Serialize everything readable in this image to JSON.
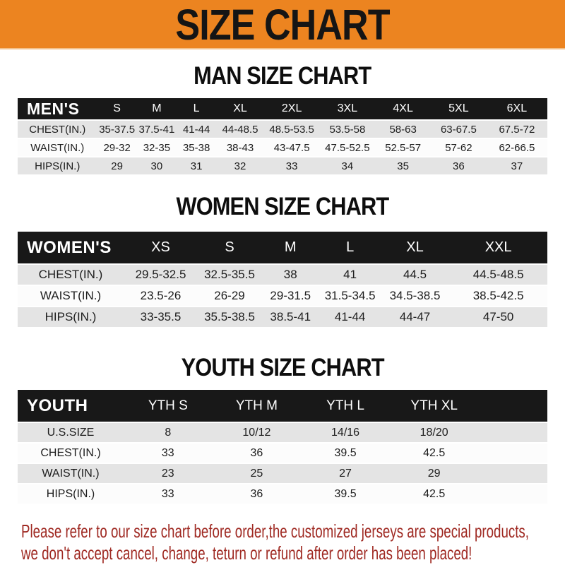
{
  "banner": {
    "title": "SIZE CHART"
  },
  "colors": {
    "banner_orange": "#EC8420",
    "header_bar_black": "#181818",
    "row_gray": "#E4E4E4",
    "row_white": "#FCFCFC",
    "disclaimer_red": "#9F2922"
  },
  "sections": [
    {
      "heading": "MAN SIZE CHART",
      "table": {
        "header_label": "MEN'S",
        "columns": [
          "S",
          "M",
          "L",
          "XL",
          "2XL",
          "3XL",
          "4XL",
          "5XL",
          "6XL"
        ],
        "rows": [
          {
            "label": "CHEST(IN.)",
            "values": [
              "35-37.5",
              "37.5-41",
              "41-44",
              "44-48.5",
              "48.5-53.5",
              "53.5-58",
              "58-63",
              "63-67.5",
              "67.5-72"
            ]
          },
          {
            "label": "WAIST(IN.)",
            "values": [
              "29-32",
              "32-35",
              "35-38",
              "38-43",
              "43-47.5",
              "47.5-52.5",
              "52.5-57",
              "57-62",
              "62-66.5"
            ]
          },
          {
            "label": "HIPS(IN.)",
            "values": [
              "29",
              "30",
              "31",
              "32",
              "33",
              "34",
              "35",
              "36",
              "37"
            ]
          }
        ]
      }
    },
    {
      "heading": "WOMEN SIZE CHART",
      "table": {
        "header_label": "WOMEN'S",
        "columns": [
          "XS",
          "S",
          "M",
          "L",
          "XL",
          "XXL"
        ],
        "rows": [
          {
            "label": "CHEST(IN.)",
            "values": [
              "29.5-32.5",
              "32.5-35.5",
              "38",
              "41",
              "44.5",
              "44.5-48.5"
            ]
          },
          {
            "label": "WAIST(IN.)",
            "values": [
              "23.5-26",
              "26-29",
              "29-31.5",
              "31.5-34.5",
              "34.5-38.5",
              "38.5-42.5"
            ]
          },
          {
            "label": "HIPS(IN.)",
            "values": [
              "33-35.5",
              "35.5-38.5",
              "38.5-41",
              "41-44",
              "44-47",
              "47-50"
            ]
          }
        ]
      }
    },
    {
      "heading": "YOUTH SIZE CHART",
      "table": {
        "header_label": "YOUTH",
        "columns": [
          "YTH S",
          "YTH M",
          "YTH L",
          "YTH XL"
        ],
        "rows": [
          {
            "label": "U.S.SIZE",
            "values": [
              "8",
              "10/12",
              "14/16",
              "18/20"
            ]
          },
          {
            "label": "CHEST(IN.)",
            "values": [
              "33",
              "36",
              "39.5",
              "42.5"
            ]
          },
          {
            "label": "WAIST(IN.)",
            "values": [
              "23",
              "25",
              "27",
              "29"
            ]
          },
          {
            "label": "HIPS(IN.)",
            "values": [
              "33",
              "36",
              "39.5",
              "42.5"
            ]
          }
        ]
      }
    }
  ],
  "disclaimer": {
    "line1": "Please refer to our size chart before order,the customized jerseys are special products,",
    "line2": "we don't accept cancel, change, teturn or refund after order has been placed!"
  }
}
